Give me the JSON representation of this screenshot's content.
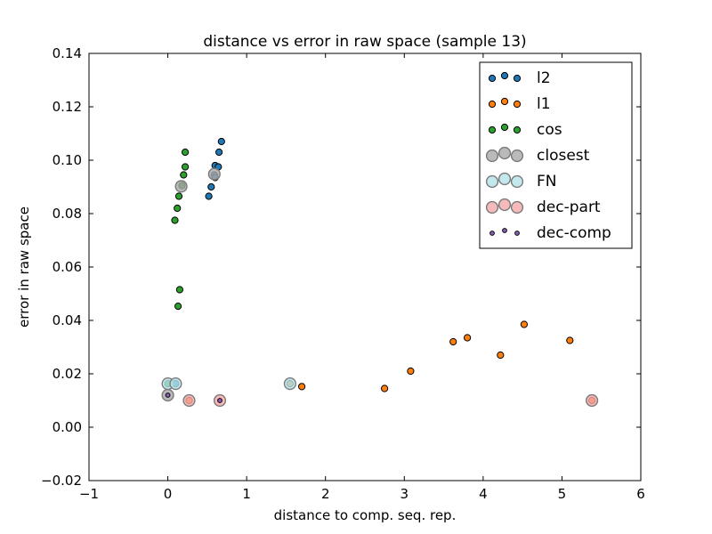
{
  "chart_data": {
    "type": "scatter",
    "title": "distance vs error in raw space (sample 13)",
    "xlabel": "distance to comp. seq. rep.",
    "ylabel": "error in raw space",
    "xlim": [
      -1,
      6
    ],
    "ylim": [
      -0.02,
      0.14
    ],
    "xticks": [
      -1,
      0,
      1,
      2,
      3,
      4,
      5,
      6
    ],
    "xtick_labels": [
      "−1",
      "0",
      "1",
      "2",
      "3",
      "4",
      "5",
      "6"
    ],
    "yticks": [
      -0.02,
      0.0,
      0.02,
      0.04,
      0.06,
      0.08,
      0.1,
      0.12,
      0.14
    ],
    "ytick_labels": [
      "−0.02",
      "0.00",
      "0.02",
      "0.04",
      "0.06",
      "0.08",
      "0.10",
      "0.12",
      "0.14"
    ],
    "grid": false,
    "legend_position": "top-right",
    "series": [
      {
        "name": "l2",
        "marker": "small",
        "color": "#1f77b4",
        "points": [
          [
            0.68,
            0.107
          ],
          [
            0.65,
            0.103
          ],
          [
            0.6,
            0.098
          ],
          [
            0.64,
            0.0975
          ],
          [
            0.59,
            0.0945
          ],
          [
            0.6,
            0.0935
          ],
          [
            0.55,
            0.09
          ],
          [
            0.52,
            0.0865
          ],
          [
            0.1,
            0.0163
          ]
        ]
      },
      {
        "name": "l1",
        "marker": "small",
        "color": "#ff7f0e",
        "points": [
          [
            4.52,
            0.0385
          ],
          [
            3.8,
            0.0335
          ],
          [
            3.62,
            0.032
          ],
          [
            5.1,
            0.0325
          ],
          [
            4.22,
            0.027
          ],
          [
            3.08,
            0.021
          ],
          [
            1.7,
            0.0152
          ],
          [
            2.75,
            0.0145
          ],
          [
            1.55,
            0.0163
          ],
          [
            5.38,
            0.01
          ],
          [
            0.27,
            0.01
          ]
        ]
      },
      {
        "name": "cos",
        "marker": "small",
        "color": "#2ca02c",
        "points": [
          [
            0.22,
            0.103
          ],
          [
            0.22,
            0.0975
          ],
          [
            0.2,
            0.0945
          ],
          [
            0.18,
            0.0905
          ],
          [
            0.14,
            0.0865
          ],
          [
            0.12,
            0.082
          ],
          [
            0.09,
            0.0775
          ],
          [
            0.15,
            0.0515
          ],
          [
            0.13,
            0.0453
          ],
          [
            0.0,
            0.0163
          ]
        ]
      },
      {
        "name": "closest",
        "marker": "large",
        "color": "#a9a9a9",
        "points": [
          [
            0.17,
            0.0902
          ],
          [
            0.59,
            0.0948
          ],
          [
            0.0,
            0.012
          ]
        ]
      },
      {
        "name": "FN",
        "marker": "large",
        "color": "#b4e4ea",
        "points": [
          [
            0.0,
            0.0163
          ],
          [
            0.1,
            0.0163
          ],
          [
            1.55,
            0.0163
          ]
        ]
      },
      {
        "name": "dec-part",
        "marker": "large",
        "color": "#f5a9a9",
        "points": [
          [
            0.27,
            0.01
          ],
          [
            0.66,
            0.01
          ],
          [
            5.38,
            0.01
          ]
        ]
      },
      {
        "name": "dec-comp",
        "marker": "tiny",
        "color": "#8c60b8",
        "points": [
          [
            0.0,
            0.012
          ],
          [
            0.66,
            0.01
          ]
        ]
      }
    ]
  }
}
